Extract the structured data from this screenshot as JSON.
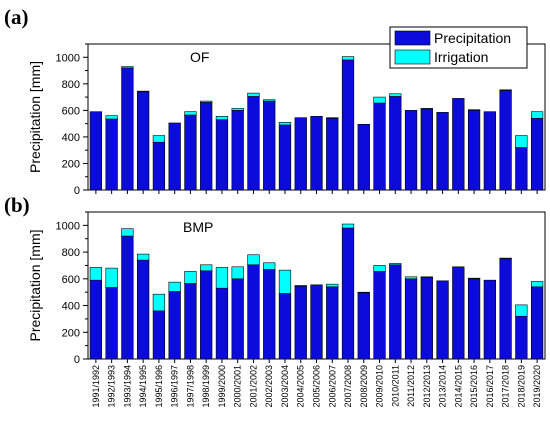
{
  "colors": {
    "precip": "#0b0bdc",
    "irrig": "#00ffff",
    "edge": "#000000"
  },
  "legend": {
    "placement": "top-right",
    "items": [
      "Precipitation",
      "Irrigation"
    ]
  },
  "xticks": [
    "1991/1992",
    "1992/1993",
    "1993/1994",
    "1994/1995",
    "1995/1996",
    "1996/1997",
    "1997/1998",
    "1998/1999",
    "1999/2000",
    "2000/2001",
    "2001/2002",
    "2002/2003",
    "2003/2004",
    "2004/2005",
    "2005/2006",
    "2006/2007",
    "2007/2008",
    "2008/2009",
    "2009/2010",
    "2010/2011",
    "2011/2012",
    "2012/2013",
    "2013/2014",
    "2014/2015",
    "2015/2016",
    "2016/2017",
    "2017/2018",
    "2018/2019",
    "2019/2020"
  ],
  "chart_data": [
    {
      "type": "bar",
      "stacked": true,
      "panel_label": "(a)",
      "annotation": "OF",
      "ylabel": "Precipitation [mm]",
      "ylim": [
        0,
        1100
      ],
      "yticks": [
        0,
        200,
        400,
        600,
        800,
        1000
      ],
      "grid": false,
      "categories": [
        "1991/1992",
        "1992/1993",
        "1993/1994",
        "1994/1995",
        "1995/1996",
        "1996/1997",
        "1997/1998",
        "1998/1999",
        "1999/2000",
        "2000/2001",
        "2001/2002",
        "2002/2003",
        "2003/2004",
        "2004/2005",
        "2005/2006",
        "2006/2007",
        "2007/2008",
        "2008/2009",
        "2009/2010",
        "2010/2011",
        "2011/2012",
        "2012/2013",
        "2013/2014",
        "2014/2015",
        "2015/2016",
        "2016/2017",
        "2017/2018",
        "2018/2019",
        "2019/2020"
      ],
      "series": [
        {
          "name": "Precipitation",
          "values": [
            590,
            535,
            920,
            740,
            360,
            505,
            565,
            660,
            530,
            600,
            705,
            670,
            490,
            545,
            555,
            540,
            980,
            495,
            655,
            705,
            600,
            610,
            585,
            690,
            600,
            590,
            750,
            320,
            540
          ]
        },
        {
          "name": "Irrigation",
          "values": [
            0,
            25,
            10,
            5,
            50,
            0,
            25,
            10,
            25,
            15,
            25,
            10,
            20,
            0,
            0,
            5,
            25,
            0,
            45,
            20,
            0,
            5,
            0,
            0,
            5,
            0,
            5,
            90,
            50
          ]
        }
      ]
    },
    {
      "type": "bar",
      "stacked": true,
      "panel_label": "(b)",
      "annotation": "BMP",
      "ylabel": "Precipitation [mm]",
      "ylim": [
        0,
        1100
      ],
      "yticks": [
        0,
        200,
        400,
        600,
        800,
        1000
      ],
      "grid": false,
      "categories": [
        "1991/1992",
        "1992/1993",
        "1993/1994",
        "1994/1995",
        "1995/1996",
        "1996/1997",
        "1997/1998",
        "1998/1999",
        "1999/2000",
        "2000/2001",
        "2001/2002",
        "2002/2003",
        "2003/2004",
        "2004/2005",
        "2005/2006",
        "2006/2007",
        "2007/2008",
        "2008/2009",
        "2009/2010",
        "2010/2011",
        "2011/2012",
        "2012/2013",
        "2013/2014",
        "2014/2015",
        "2015/2016",
        "2016/2017",
        "2017/2018",
        "2018/2019",
        "2019/2020"
      ],
      "series": [
        {
          "name": "Precipitation",
          "values": [
            590,
            535,
            920,
            740,
            360,
            505,
            565,
            660,
            530,
            600,
            705,
            670,
            490,
            545,
            555,
            540,
            980,
            495,
            655,
            705,
            600,
            610,
            585,
            690,
            600,
            590,
            750,
            320,
            540
          ]
        },
        {
          "name": "Irrigation",
          "values": [
            95,
            145,
            55,
            45,
            125,
            70,
            90,
            45,
            155,
            90,
            75,
            50,
            175,
            5,
            0,
            20,
            30,
            5,
            45,
            10,
            15,
            5,
            0,
            0,
            5,
            0,
            5,
            85,
            40
          ]
        }
      ]
    }
  ]
}
